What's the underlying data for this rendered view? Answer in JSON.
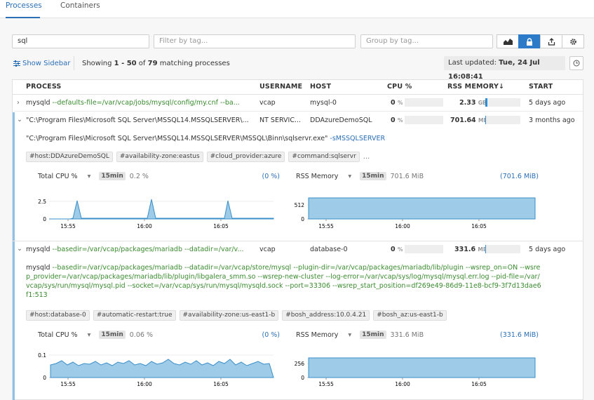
{
  "tabs": [
    {
      "label": "Processes"
    },
    {
      "label": "Containers"
    }
  ],
  "toolbar": {
    "search_value": "sql",
    "filter_placeholder": "Filter by tag...",
    "group_placeholder": "Group by tag..."
  },
  "subbar": {
    "show_sidebar": "Show Sidebar",
    "showing": "Showing ",
    "range": "1 - 50",
    "of": " of ",
    "total": "79",
    "suffix": " matching processes",
    "last_updated_label": "Last updated: ",
    "last_updated_value": "Tue, 24 Jul 16:08:41"
  },
  "columns": {
    "process": "PROCESS",
    "username": "USERNAME",
    "host": "HOST",
    "cpu": "CPU %",
    "rss": "RSS MEMORY",
    "rss_sort": "↓",
    "start": "START"
  },
  "rows": [
    {
      "cmd": "mysqld",
      "args": " --defaults-file=/var/vcap/jobs/mysql/config/my.cnf --ba...",
      "user": "vcap",
      "host": "mysql-0",
      "cpu": "0",
      "rss": "2.33",
      "rss_unit": "GB",
      "start": "5 days ago",
      "rss_level": 0.03
    },
    {
      "cmd": "\"C:\\Program Files\\Microsoft SQL Server\\MSSQL14.MSSQLSERVER\\...",
      "args": "",
      "user": "NT SERVIC...",
      "host": "DDAzureDemoSQL",
      "cpu": "0",
      "rss": "701.64",
      "rss_unit": "MB",
      "start": "3 months ago",
      "rss_level": 0.0
    },
    {
      "cmd": "mysqld",
      "args": " --basedir=/var/vcap/packages/mariadb --datadir=/var/v...",
      "user": "vcap",
      "host": "database-0",
      "cpu": "0",
      "rss": "331.6",
      "rss_unit": "MB",
      "start": "5 days ago",
      "rss_level": 0.0
    }
  ],
  "pct_sign": "%",
  "detail1": {
    "cmd_path": "\"C:\\Program Files\\Microsoft SQL Server\\MSSQL14.MSSQLSERVER\\MSSQL\\Binn\\sqlservr.exe\"",
    "cmd_args": " -sMSSQLSERVER",
    "tags": [
      "#host:DDAzureDemoSQL",
      "#availability-zone:eastus",
      "#cloud_provider:azure",
      "#command:sqlservr"
    ],
    "more": "...",
    "cpu_metric": "Total CPU %",
    "cpu_window": "15min",
    "cpu_value": "0.2 %",
    "cpu_pct": "(0 %)",
    "mem_metric": "RSS Memory",
    "mem_window": "15min",
    "mem_value": "701.6 MiB",
    "mem_pct": "(701.6 MiB)",
    "cpu_yticks": [
      "2.5",
      "0"
    ],
    "mem_yticks": [
      "512",
      "0"
    ],
    "xticks": [
      "15:55",
      "16:00",
      "16:05"
    ]
  },
  "detail2": {
    "cmd": "mysqld",
    "args": " --basedir=/var/vcap/packages/mariadb --datadir=/var/vcap/store/mysql --plugin-dir=/var/vcap/packages/mariadb/lib/plugin --wsrep_on=ON --wsrep_provider=/var/vcap/packages/mariadb/lib/plugin/libgalera_smm.so --wsrep-new-cluster --log-error=/var/vcap/sys/log/mysql/mysql.err.log --pid-file=/var/vcap/sys/run/mysql/mysql.pid --socket=/var/vcap/sys/run/mysql/mysqld.sock --port=33306 --wsrep_start_position=df269e49-86d9-11e8-bcf9-3f7d13dae6f1:513",
    "tags": [
      "#host:database-0",
      "#automatic-restart:true",
      "#availability-zone:us-east1-b",
      "#bosh_address:10.0.4.21",
      "#bosh_az:us-east1-b"
    ],
    "cpu_metric": "Total CPU %",
    "cpu_window": "15min",
    "cpu_value": "0.06 %",
    "cpu_pct": "(0 %)",
    "mem_metric": "RSS Memory",
    "mem_window": "15min",
    "mem_value": "331.6 MiB",
    "mem_pct": "(331.6 MiB)",
    "cpu_yticks": [
      "0.1",
      "0"
    ],
    "mem_yticks": [
      "256",
      "0"
    ],
    "xticks": [
      "15:55",
      "16:00",
      "16:05"
    ]
  },
  "colors": {
    "accent": "#2b6fb6",
    "area_fill": "#9dcbe8",
    "area_line": "#3a8fc8"
  }
}
